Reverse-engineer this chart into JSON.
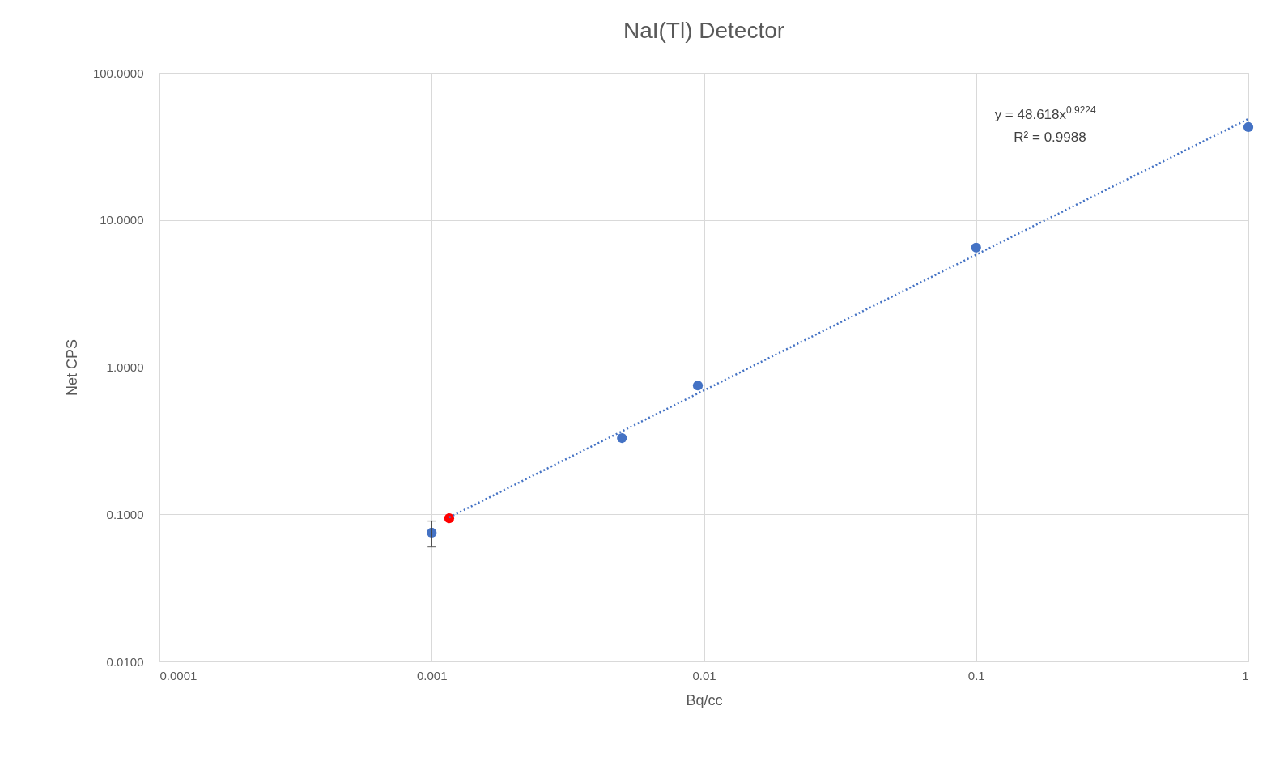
{
  "chart_data": {
    "type": "scatter",
    "title": "NaI(Tl) Detector",
    "xlabel": "Bq/cc",
    "ylabel": "Net CPS",
    "log": "xy",
    "grid": true,
    "legend": false,
    "marker": "circle",
    "xlim": [
      0.0001,
      1
    ],
    "xticks": [
      0.0001,
      0.001,
      0.01,
      0.1,
      1
    ],
    "ylim": [
      0.01,
      100
    ],
    "yticks": [
      {
        "value": 0.01,
        "label": "0.0100"
      },
      {
        "value": 0.1,
        "label": "0.1000"
      },
      {
        "value": 1,
        "label": "1.0000"
      },
      {
        "value": 10,
        "label": "10.0000"
      },
      {
        "value": 100,
        "label": "100.0000"
      }
    ],
    "annotations": [
      "y = 48.618x$^{0.9224}$",
      "R² = 0.9988"
    ],
    "series": [
      {
        "type": "scatter",
        "x": [
          0.001,
          0.00116,
          0.005,
          0.0095,
          0.1,
          1
        ],
        "values": [
          0.075,
          0.094,
          0.33,
          0.75,
          6.5,
          42.8
        ],
        "colors": [
          "#4472c4",
          "#ff0000",
          "#4472c4",
          "#4472c4",
          "#4472c4",
          "#4472c4"
        ],
        "errors": [
          [
            0.06,
            0.09
          ],
          null,
          null,
          null,
          null,
          null
        ]
      },
      {
        "type": "line",
        "x": [
          0.00116,
          1
        ],
        "values": [
          0.0953,
          48.618
        ],
        "color": "#4472c4",
        "line_style": "dotted",
        "marker": "none"
      }
    ]
  }
}
